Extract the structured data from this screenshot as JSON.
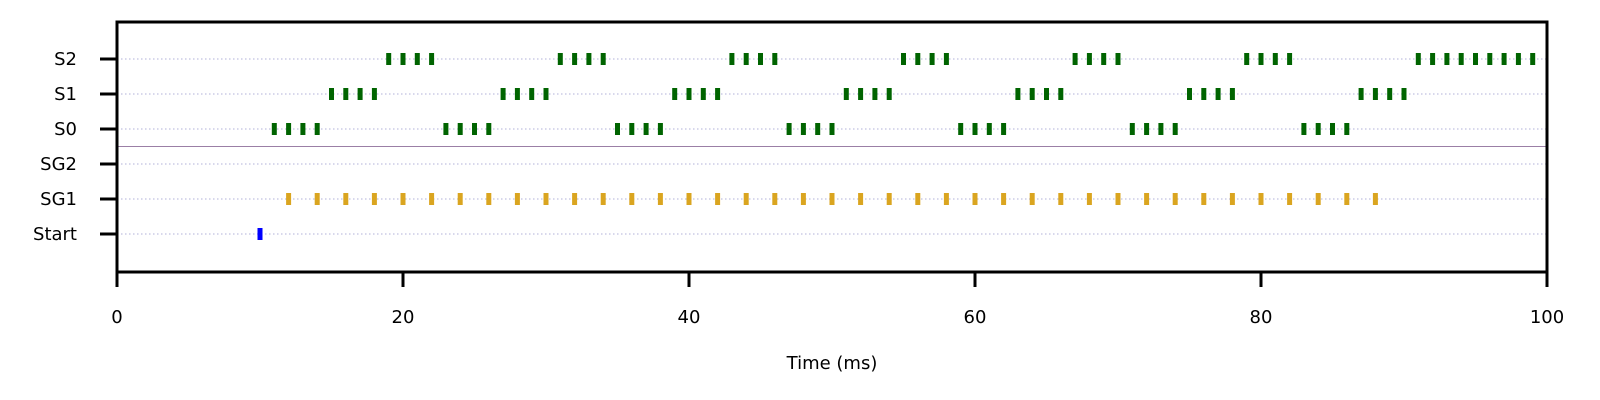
{
  "chart_data": {
    "type": "scatter",
    "xlabel": "Time (ms)",
    "xlim": [
      0,
      100
    ],
    "xticks": [
      0,
      20,
      40,
      60,
      80,
      100
    ],
    "x_tick_labels": [
      "0",
      "20",
      "40",
      "60",
      "80",
      "100"
    ],
    "categories": [
      "Start",
      "SG1",
      "SG2",
      "S0",
      "S1",
      "S2"
    ],
    "grid": "horizontal dotted",
    "series": [
      {
        "name": "Start",
        "color": "#0000ff",
        "x": [
          10
        ]
      },
      {
        "name": "SG1",
        "color": "#daa520",
        "x": [
          12,
          14,
          16,
          18,
          20,
          22,
          24,
          26,
          28,
          30,
          32,
          34,
          36,
          38,
          40,
          42,
          44,
          46,
          48,
          50,
          52,
          54,
          56,
          58,
          60,
          62,
          64,
          66,
          68,
          70,
          72,
          74,
          76,
          78,
          80,
          82,
          84,
          86,
          88
        ]
      },
      {
        "name": "SG2",
        "color": "#006400",
        "x": []
      },
      {
        "name": "S0",
        "color": "#006400",
        "x": [
          11,
          12,
          13,
          14,
          23,
          24,
          25,
          26,
          35,
          36,
          37,
          38,
          47,
          48,
          49,
          50,
          59,
          60,
          61,
          62,
          71,
          72,
          73,
          74,
          83,
          84,
          85,
          86
        ]
      },
      {
        "name": "S1",
        "color": "#006400",
        "x": [
          15,
          16,
          17,
          18,
          27,
          28,
          29,
          30,
          39,
          40,
          41,
          42,
          51,
          52,
          53,
          54,
          63,
          64,
          65,
          66,
          75,
          76,
          77,
          78,
          87,
          88,
          89,
          90
        ]
      },
      {
        "name": "S2",
        "color": "#006400",
        "x": [
          19,
          20,
          21,
          22,
          31,
          32,
          33,
          34,
          43,
          44,
          45,
          46,
          55,
          56,
          57,
          58,
          67,
          68,
          69,
          70,
          79,
          80,
          81,
          82,
          91,
          92,
          93,
          94,
          95,
          96,
          97,
          98,
          99
        ]
      }
    ],
    "separator_color": "#9b7fa6"
  }
}
